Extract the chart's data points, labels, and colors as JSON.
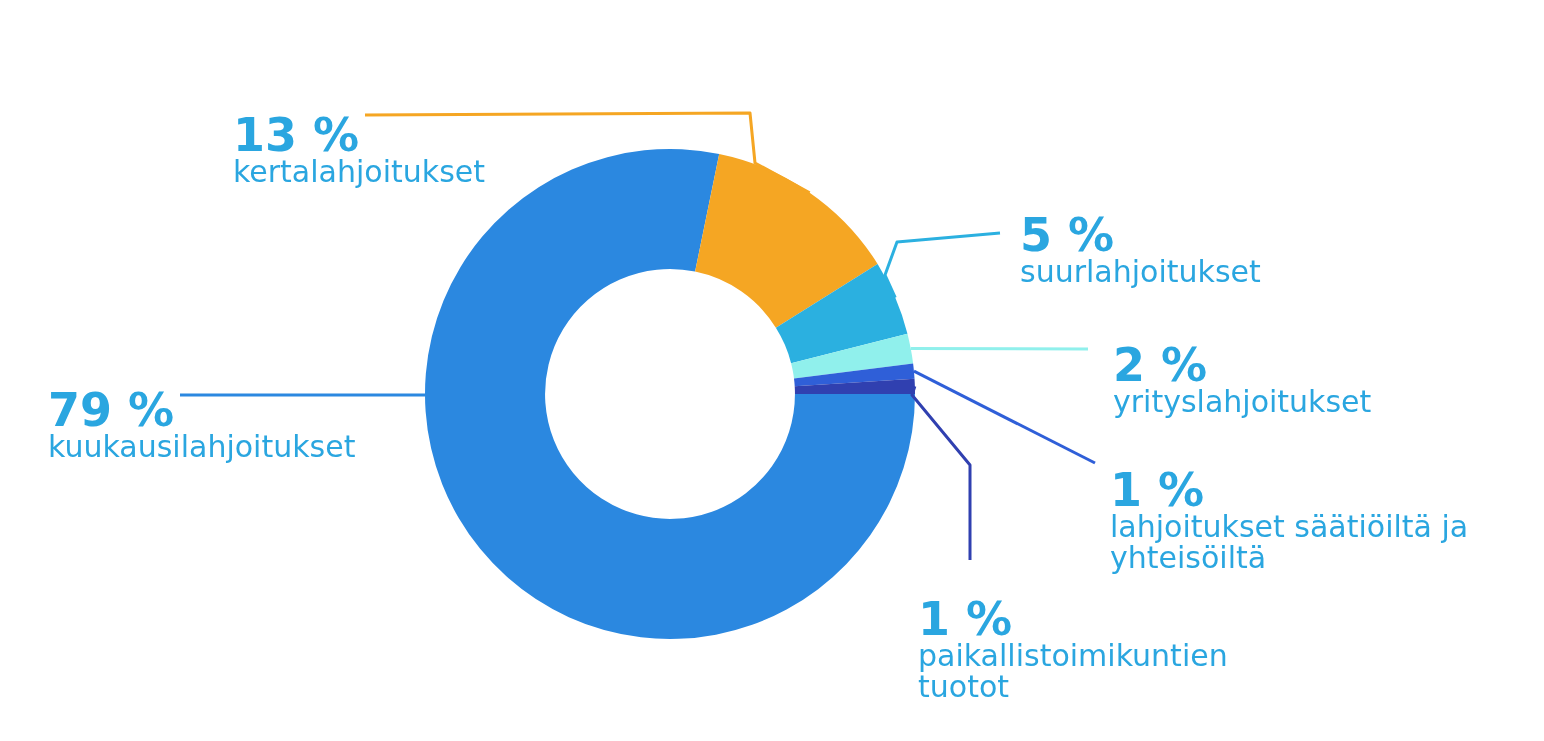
{
  "chart_data": {
    "type": "donut",
    "categories": [
      "kuukausilahjoitukset",
      "kertalahjoitukset",
      "suurlahjoitukset",
      "yrityslahjoitukset",
      "lahjoitukset säätiöiltä ja yhteisöiltä",
      "paikallistoimikuntien tuotot"
    ],
    "values": [
      79,
      13,
      5,
      2,
      1,
      1
    ],
    "value_labels": [
      "79 %",
      "13 %",
      "5 %",
      "2 %",
      "1 %",
      "1 %"
    ],
    "colors": [
      "#2b88e0",
      "#f5a623",
      "#2bb0e0",
      "#90f0ec",
      "#2f5fd8",
      "#3040b0"
    ]
  }
}
